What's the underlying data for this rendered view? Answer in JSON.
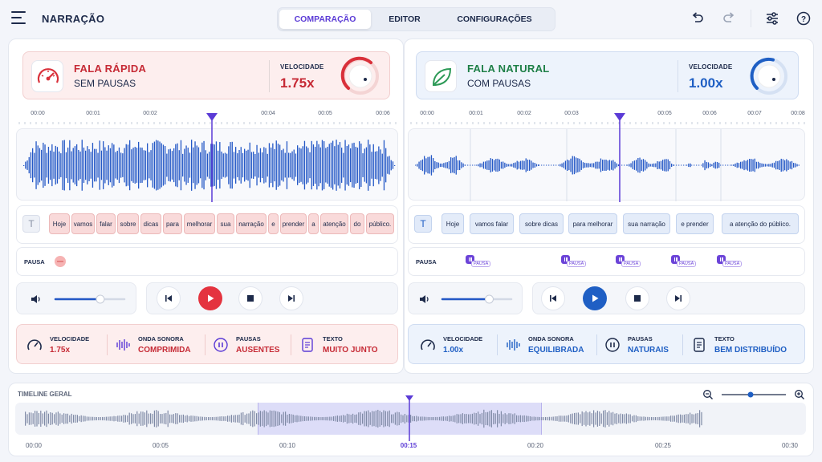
{
  "app": {
    "title": "NARRAÇÃO"
  },
  "tabs": [
    {
      "label": "COMPARAÇÃO",
      "active": true
    },
    {
      "label": "EDITOR",
      "active": false
    },
    {
      "label": "CONFIGURAÇÕES",
      "active": false
    }
  ],
  "toolbar_icons": [
    "undo-icon",
    "redo-icon",
    "sliders-icon",
    "help-icon"
  ],
  "left": {
    "title": "FALA RÁPIDA",
    "subtitle": "SEM PAUSAS",
    "speed_label": "VELOCIDADE",
    "speed_value": "1.75x",
    "accent": "#d9303a",
    "ticks": [
      "00:00",
      "00:01",
      "00:02",
      "00:04",
      "00:05",
      "00:06"
    ],
    "text_icon": "T",
    "words": [
      "Hoje",
      "vamos",
      "falar",
      "sobre",
      "dicas",
      "para",
      "melhorar",
      "sua",
      "narração",
      "e",
      "prender",
      "a",
      "atenção",
      "do",
      "público."
    ],
    "pause_label": "PAUSA",
    "volume_level": 0.65,
    "stats": [
      {
        "icon": "gauge-icon",
        "label": "VELOCIDADE",
        "value": "1.75x"
      },
      {
        "icon": "waveform-icon",
        "label": "ONDA SONORA",
        "value": "COMPRIMIDA"
      },
      {
        "icon": "pause-icon",
        "label": "PAUSAS",
        "value": "AUSENTES"
      },
      {
        "icon": "document-icon",
        "label": "TEXTO",
        "value": "MUITO JUNTO"
      }
    ]
  },
  "right": {
    "title": "FALA NATURAL",
    "subtitle": "COM PAUSAS",
    "speed_label": "VELOCIDADE",
    "speed_value": "1.00x",
    "accent": "#1f5fc4",
    "ticks": [
      "00:00",
      "00:01",
      "00:02",
      "00:03",
      "00:05",
      "00:06",
      "00:07",
      "00:08"
    ],
    "text_icon": "T",
    "words": [
      "Hoje",
      "vamos falar",
      "sobre dicas",
      "para melhorar",
      "sua narração",
      "e prender",
      "a atenção do público."
    ],
    "pause_label": "PAUSA",
    "pause_tag": "PAUSA",
    "volume_level": 0.68,
    "stats": [
      {
        "icon": "gauge-icon",
        "label": "VELOCIDADE",
        "value": "1.00x"
      },
      {
        "icon": "waveform-icon",
        "label": "ONDA SONORA",
        "value": "EQUILIBRADA"
      },
      {
        "icon": "pause-icon",
        "label": "PAUSAS",
        "value": "NATURAIS"
      },
      {
        "icon": "document-icon",
        "label": "TEXTO",
        "value": "BEM DISTRIBUÍDO"
      }
    ]
  },
  "timeline": {
    "title": "TIMELINE GERAL",
    "zoom_level": 0.45,
    "labels": [
      "00:00",
      "00:05",
      "00:10",
      "00:15",
      "00:20",
      "00:25",
      "00:30"
    ],
    "current": "00:15"
  }
}
